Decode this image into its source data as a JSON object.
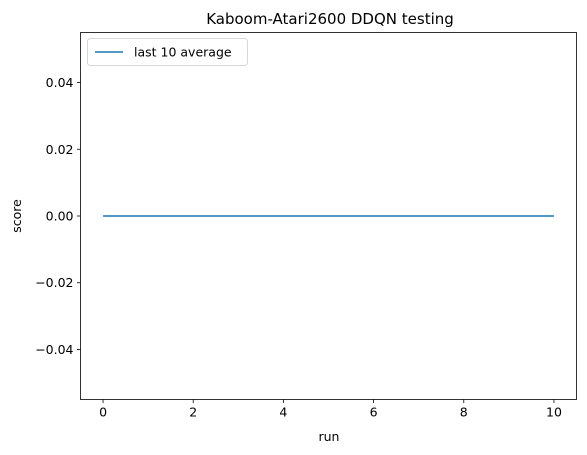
{
  "chart_data": {
    "type": "line",
    "title": "Kaboom-Atari2600 DDQN testing",
    "xlabel": "run",
    "ylabel": "score",
    "xlim": [
      -0.5,
      10.5
    ],
    "ylim": [
      -0.055,
      0.055
    ],
    "xticks": [
      0,
      2,
      4,
      6,
      8,
      10
    ],
    "yticks": [
      -0.04,
      -0.02,
      0.0,
      0.02,
      0.04
    ],
    "xtick_labels": [
      "0",
      "2",
      "4",
      "6",
      "8",
      "10"
    ],
    "ytick_labels": [
      "−0.04",
      "−0.02",
      "0.00",
      "0.02",
      "0.04"
    ],
    "grid": false,
    "legend_position": "top-left",
    "series": [
      {
        "name": "last 10 average",
        "color": "#1f77b4",
        "x": [
          0,
          1,
          2,
          3,
          4,
          5,
          6,
          7,
          8,
          9,
          10
        ],
        "y": [
          0,
          0,
          0,
          0,
          0,
          0,
          0,
          0,
          0,
          0,
          0
        ]
      }
    ]
  }
}
